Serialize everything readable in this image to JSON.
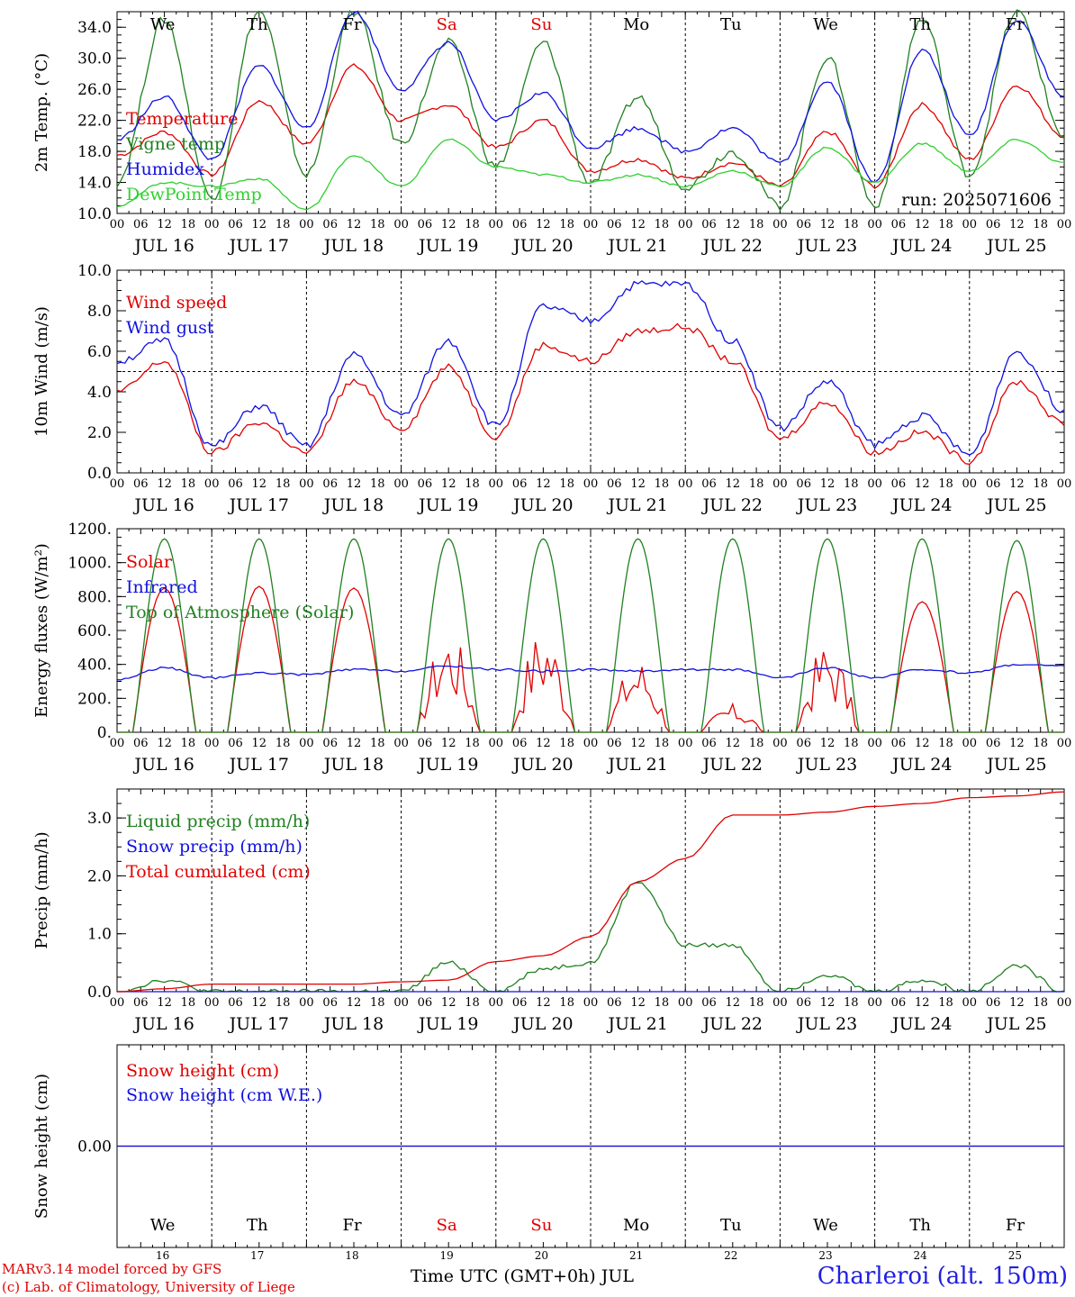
{
  "footer": {
    "model_line": "MARv3.14 model forced by GFS",
    "copyright_line": "(c) Lab. of Climatology, University of Liege",
    "time_axis_label": "Time UTC (GMT+0h) JUL",
    "location_title": "Charleroi (alt. 150m)"
  },
  "time_axis": {
    "hour_ticks": [
      "00",
      "06",
      "12",
      "18"
    ],
    "end_tick": "00",
    "date_labels": [
      "JUL 16",
      "JUL 17",
      "JUL 18",
      "JUL 19",
      "JUL 20",
      "JUL 21",
      "JUL 22",
      "JUL 23",
      "JUL 24",
      "JUL 25"
    ],
    "weekdays": [
      "We",
      "Th",
      "Fr",
      "Sa",
      "Su",
      "Mo",
      "Tu",
      "We",
      "Th",
      "Fr"
    ],
    "weekday_colors": [
      "#000000",
      "#000000",
      "#000000",
      "#e00000",
      "#e00000",
      "#000000",
      "#000000",
      "#000000",
      "#000000",
      "#000000"
    ],
    "day_numbers": [
      "16",
      "17",
      "18",
      "19",
      "20",
      "21",
      "22",
      "23",
      "24",
      "25"
    ]
  },
  "colors": {
    "red": "#e00000",
    "blue": "#1010e0",
    "green": "#208020",
    "lightgreen": "#30d030",
    "axis": "#000000"
  },
  "chart_data": [
    {
      "type": "line",
      "ylabel": "2m Temp. (°C)",
      "ylim": [
        10,
        36
      ],
      "yticks": [
        "10.0",
        "14.0",
        "18.0",
        "22.0",
        "26.0",
        "30.0",
        "34.0"
      ],
      "ytick_values": [
        10,
        14,
        18,
        22,
        26,
        30,
        34
      ],
      "annotation": "run: 2025071606",
      "x_hours": [
        0,
        12,
        24,
        36,
        48,
        60,
        72,
        84,
        96,
        108,
        120,
        132,
        144,
        156,
        168,
        180,
        192,
        204,
        216,
        228,
        240
      ],
      "series": [
        {
          "name": "Temperature",
          "color": "#e00000",
          "values": [
            17.5,
            20.5,
            15.0,
            24.5,
            19.0,
            29.0,
            22.0,
            24.0,
            18.5,
            22.0,
            15.5,
            17.0,
            14.5,
            16.5,
            13.5,
            20.5,
            13.5,
            24.0,
            17.0,
            26.5,
            20.0
          ]
        },
        {
          "name": "Vigne temp",
          "color": "#208020",
          "values": [
            14.0,
            35.0,
            12.0,
            36.0,
            15.0,
            36.0,
            19.0,
            32.0,
            16.0,
            32.0,
            14.0,
            25.0,
            13.5,
            18.0,
            11.0,
            30.0,
            11.0,
            35.0,
            15.0,
            36.0,
            20.0
          ]
        },
        {
          "name": "Humidex",
          "color": "#1010e0",
          "values": [
            19.5,
            25.0,
            17.0,
            29.0,
            21.0,
            36.0,
            26.0,
            32.0,
            22.0,
            25.5,
            18.5,
            21.0,
            18.0,
            21.0,
            16.5,
            27.0,
            14.0,
            31.0,
            20.0,
            35.0,
            25.0
          ]
        },
        {
          "name": "DewPoint Temp",
          "color": "#30d030",
          "values": [
            11.0,
            14.0,
            13.5,
            14.5,
            10.5,
            17.5,
            13.5,
            19.5,
            16.0,
            15.0,
            14.0,
            15.0,
            13.5,
            15.5,
            13.5,
            18.5,
            14.0,
            19.0,
            15.5,
            19.5,
            16.5
          ]
        }
      ]
    },
    {
      "type": "line",
      "ylabel": "10m Wind (m/s)",
      "ylim": [
        0,
        10
      ],
      "yticks": [
        "0.0",
        "2.0",
        "4.0",
        "6.0",
        "8.0",
        "10.0"
      ],
      "ytick_values": [
        0,
        2,
        4,
        6,
        8,
        10
      ],
      "reference_line": 5,
      "x_hours": [
        0,
        12,
        24,
        36,
        48,
        60,
        72,
        84,
        96,
        108,
        120,
        132,
        144,
        156,
        168,
        180,
        192,
        204,
        216,
        228,
        240
      ],
      "series": [
        {
          "name": "Wind speed",
          "color": "#e00000",
          "values": [
            4.0,
            5.5,
            1.0,
            2.5,
            1.0,
            4.5,
            2.2,
            5.2,
            1.8,
            6.3,
            5.5,
            7.0,
            7.2,
            5.5,
            1.7,
            3.5,
            1.0,
            2.0,
            0.6,
            4.5,
            2.4
          ]
        },
        {
          "name": "Wind gust",
          "color": "#1010e0",
          "values": [
            5.5,
            6.5,
            1.3,
            3.3,
            1.3,
            5.8,
            2.8,
            6.5,
            2.3,
            8.2,
            7.5,
            9.3,
            9.3,
            6.5,
            2.2,
            4.5,
            1.4,
            2.8,
            0.9,
            6.0,
            3.1
          ]
        }
      ]
    },
    {
      "type": "line",
      "ylabel": "Energy fluxes (W/m²)",
      "ylim": [
        0,
        1200
      ],
      "yticks": [
        "0.",
        "200.",
        "400.",
        "600.",
        "800.",
        "1000.",
        "1200."
      ],
      "ytick_values": [
        0,
        200,
        400,
        600,
        800,
        1000,
        1200
      ],
      "x_hours": [
        0,
        12,
        24,
        36,
        48,
        60,
        72,
        84,
        96,
        108,
        120,
        132,
        144,
        156,
        168,
        180,
        192,
        204,
        216,
        228,
        240
      ],
      "solar_daily_peaks": [
        850,
        860,
        850,
        630,
        650,
        460,
        170,
        550,
        770,
        830
      ],
      "series": [
        {
          "name": "Solar",
          "color": "#e00000",
          "values": [
            0,
            850,
            0,
            860,
            0,
            850,
            0,
            630,
            0,
            650,
            0,
            460,
            0,
            170,
            0,
            550,
            0,
            770,
            0,
            830,
            0
          ]
        },
        {
          "name": "Infrared",
          "color": "#1010e0",
          "values": [
            310,
            380,
            320,
            350,
            340,
            370,
            360,
            390,
            370,
            360,
            370,
            360,
            370,
            370,
            320,
            380,
            320,
            370,
            350,
            400,
            390
          ]
        },
        {
          "name": "Top of Atmosphere (Solar)",
          "color": "#208020",
          "values": [
            0,
            1140,
            0,
            1140,
            0,
            1140,
            0,
            1140,
            0,
            1140,
            0,
            1140,
            0,
            1140,
            0,
            1140,
            0,
            1140,
            0,
            1130,
            0
          ]
        }
      ]
    },
    {
      "type": "line",
      "ylabel": "Precip (mm/h)",
      "ylim": [
        0,
        3.5
      ],
      "yticks": [
        "0.0",
        "1.0",
        "2.0",
        "3.0"
      ],
      "ytick_values": [
        0,
        1,
        2,
        3
      ],
      "x_hours": [
        0,
        12,
        24,
        36,
        48,
        60,
        72,
        84,
        96,
        108,
        120,
        132,
        144,
        156,
        168,
        180,
        192,
        204,
        216,
        228,
        240
      ],
      "series": [
        {
          "name": "Liquid precip (mm/h)",
          "color": "#208020",
          "values": [
            0.0,
            0.2,
            0.0,
            0.0,
            0.0,
            0.0,
            0.0,
            0.5,
            0.0,
            0.4,
            0.5,
            1.9,
            0.8,
            0.8,
            0.0,
            0.3,
            0.0,
            0.2,
            0.0,
            0.45,
            0.0
          ]
        },
        {
          "name": "Snow precip (mm/h)",
          "color": "#1010e0",
          "values": [
            0,
            0,
            0,
            0,
            0,
            0,
            0,
            0,
            0,
            0,
            0,
            0,
            0,
            0,
            0,
            0,
            0,
            0,
            0,
            0,
            0
          ]
        },
        {
          "name": "Total cumulated (cm)",
          "color": "#e00000",
          "values": [
            0.0,
            0.05,
            0.13,
            0.13,
            0.13,
            0.13,
            0.17,
            0.2,
            0.52,
            0.62,
            0.95,
            1.9,
            2.3,
            3.05,
            3.05,
            3.1,
            3.2,
            3.25,
            3.35,
            3.38,
            3.45
          ]
        }
      ]
    },
    {
      "type": "line",
      "ylabel": "Snow height (cm)",
      "ylim": [
        -1,
        1
      ],
      "yticks": [
        "0.00"
      ],
      "ytick_values": [
        0
      ],
      "x_hours": [
        0,
        240
      ],
      "series": [
        {
          "name": "Snow height (cm)",
          "color": "#e00000",
          "values": [
            0,
            0
          ]
        },
        {
          "name": "Snow height (cm W.E.)",
          "color": "#1010e0",
          "values": [
            0,
            0
          ]
        }
      ]
    }
  ]
}
